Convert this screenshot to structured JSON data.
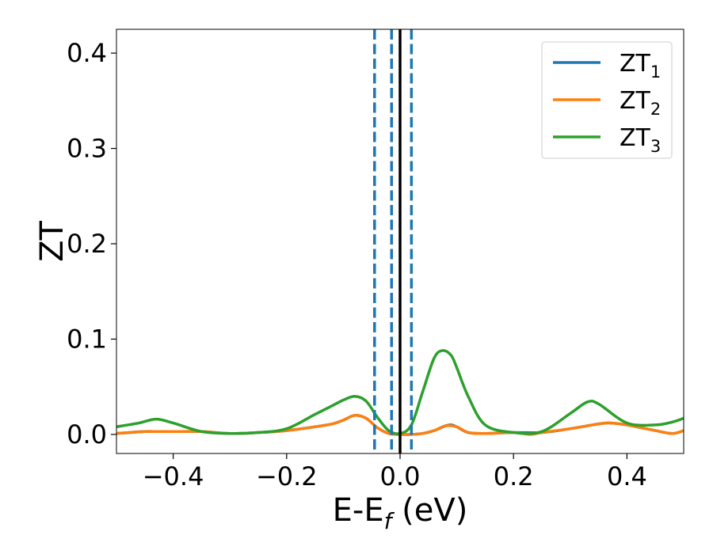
{
  "chart_data": {
    "type": "line",
    "xlabel": {
      "main": "E-E",
      "sub": "f",
      "suffix": " (eV)"
    },
    "ylabel": "ZT",
    "xlim": [
      -0.5,
      0.5
    ],
    "ylim": [
      -0.02,
      0.425
    ],
    "xticks": [
      {
        "v": -0.4,
        "label": "−0.4"
      },
      {
        "v": -0.2,
        "label": "−0.2"
      },
      {
        "v": 0.0,
        "label": "0.0"
      },
      {
        "v": 0.2,
        "label": "0.2"
      },
      {
        "v": 0.4,
        "label": "0.4"
      }
    ],
    "yticks": [
      {
        "v": 0.0,
        "label": "0.0"
      },
      {
        "v": 0.1,
        "label": "0.1"
      },
      {
        "v": 0.2,
        "label": "0.2"
      },
      {
        "v": 0.3,
        "label": "0.3"
      },
      {
        "v": 0.4,
        "label": "0.4"
      }
    ],
    "grid": false,
    "legend_position": "top-right",
    "vlines": [
      {
        "x": -0.045,
        "style": "dashed",
        "color": "#1f77b4"
      },
      {
        "x": -0.015,
        "style": "dashed",
        "color": "#1f77b4"
      },
      {
        "x": 0.02,
        "style": "dashed",
        "color": "#1f77b4"
      },
      {
        "x": 0.0,
        "style": "solid",
        "color": "#000000"
      }
    ],
    "series": [
      {
        "name": "ZT",
        "sub": "1",
        "color": "#1f77b4",
        "x": [
          -0.5,
          -0.45,
          -0.43,
          -0.4,
          -0.35,
          -0.3,
          -0.25,
          -0.2,
          -0.15,
          -0.12,
          -0.1,
          -0.08,
          -0.06,
          -0.04,
          -0.02,
          0.0,
          0.02,
          0.04,
          0.06,
          0.08,
          0.09,
          0.1,
          0.12,
          0.15,
          0.2,
          0.25,
          0.3,
          0.35,
          0.37,
          0.4,
          0.45,
          0.48,
          0.5
        ],
        "y": [
          0.001,
          0.003,
          0.003,
          0.003,
          0.003,
          0.001,
          0.002,
          0.004,
          0.008,
          0.011,
          0.015,
          0.02,
          0.017,
          0.007,
          0.001,
          0.0,
          0.0,
          0.001,
          0.004,
          0.009,
          0.01,
          0.008,
          0.002,
          0.001,
          0.002,
          0.002,
          0.006,
          0.011,
          0.012,
          0.01,
          0.004,
          0.001,
          0.004
        ]
      },
      {
        "name": "ZT",
        "sub": "2",
        "color": "#ff7f0e",
        "x": [
          -0.5,
          -0.45,
          -0.43,
          -0.4,
          -0.35,
          -0.3,
          -0.25,
          -0.2,
          -0.15,
          -0.12,
          -0.1,
          -0.08,
          -0.06,
          -0.04,
          -0.02,
          0.0,
          0.02,
          0.04,
          0.06,
          0.08,
          0.1,
          0.12,
          0.15,
          0.2,
          0.23,
          0.25,
          0.3,
          0.35,
          0.37,
          0.4,
          0.45,
          0.48,
          0.5
        ],
        "y": [
          0.001,
          0.003,
          0.003,
          0.003,
          0.003,
          0.001,
          0.002,
          0.004,
          0.008,
          0.011,
          0.015,
          0.02,
          0.017,
          0.007,
          0.001,
          0.0,
          0.0,
          0.001,
          0.004,
          0.009,
          0.008,
          0.002,
          0.001,
          0.002,
          0.0,
          0.002,
          0.006,
          0.011,
          0.012,
          0.01,
          0.004,
          0.001,
          0.004
        ]
      },
      {
        "name": "ZT",
        "sub": "3",
        "color": "#2ca02c",
        "x": [
          -0.5,
          -0.46,
          -0.43,
          -0.4,
          -0.35,
          -0.3,
          -0.25,
          -0.2,
          -0.15,
          -0.12,
          -0.1,
          -0.08,
          -0.06,
          -0.04,
          -0.02,
          0.0,
          0.02,
          0.04,
          0.06,
          0.075,
          0.09,
          0.1,
          0.12,
          0.15,
          0.2,
          0.25,
          0.3,
          0.33,
          0.35,
          0.4,
          0.45,
          0.48,
          0.5
        ],
        "y": [
          0.008,
          0.012,
          0.016,
          0.012,
          0.003,
          0.001,
          0.002,
          0.006,
          0.021,
          0.03,
          0.036,
          0.04,
          0.035,
          0.018,
          0.004,
          0.001,
          0.01,
          0.045,
          0.08,
          0.088,
          0.083,
          0.07,
          0.04,
          0.01,
          0.002,
          0.003,
          0.022,
          0.034,
          0.032,
          0.012,
          0.01,
          0.013,
          0.017
        ]
      }
    ]
  }
}
